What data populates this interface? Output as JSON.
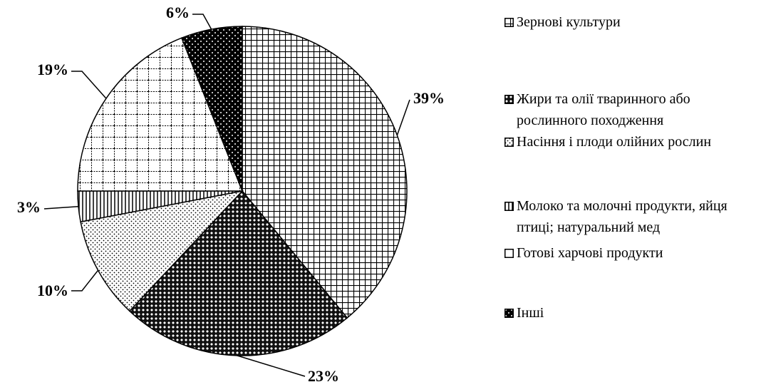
{
  "chart_data": {
    "type": "pie",
    "categories": [
      "Зернові культури",
      "Жири та олії тваринного або рослинного походження",
      "Насіння і плоди олійних рослин",
      "Молоко та молочні продукти, яйця птиці; натуральний мед",
      "Готові харчові продукти",
      "Інші"
    ],
    "values": [
      39,
      23,
      10,
      3,
      19,
      6
    ],
    "value_labels": [
      "39%",
      "23%",
      "10%",
      "3%",
      "19%",
      "6%"
    ],
    "legend": "right"
  }
}
